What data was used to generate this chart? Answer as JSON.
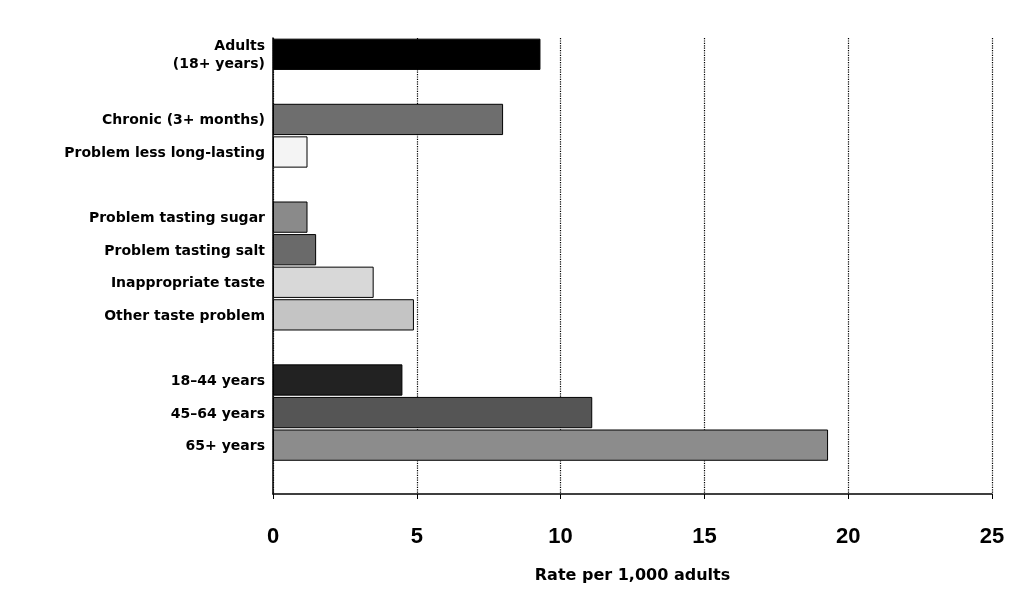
{
  "chart_data": {
    "type": "bar",
    "orientation": "horizontal",
    "xlabel": "Rate per 1,000 adults",
    "categories": [
      "Adults\n(18+ years)",
      null,
      "Chronic (3+ months)",
      "Problem less long-lasting",
      null,
      "Problem tasting sugar",
      "Problem tasting salt",
      "Inappropriate taste",
      "Other taste problem",
      null,
      "18–44 years",
      "45–64 years",
      "65+ years",
      null
    ],
    "values": [
      9.3,
      null,
      8.0,
      1.2,
      null,
      1.2,
      1.5,
      3.5,
      4.9,
      null,
      4.5,
      11.1,
      19.3,
      null
    ],
    "colors": [
      "#000000",
      null,
      "#6e6e6e",
      "#f4f4f4",
      null,
      "#8a8a8a",
      "#6a6a6a",
      "#d8d8d8",
      "#c4c4c4",
      null,
      "#222222",
      "#555555",
      "#8c8c8c",
      null
    ],
    "xlim": [
      0,
      25
    ],
    "xticks": [
      0,
      5,
      10,
      15,
      20,
      25
    ],
    "grid": "x"
  }
}
